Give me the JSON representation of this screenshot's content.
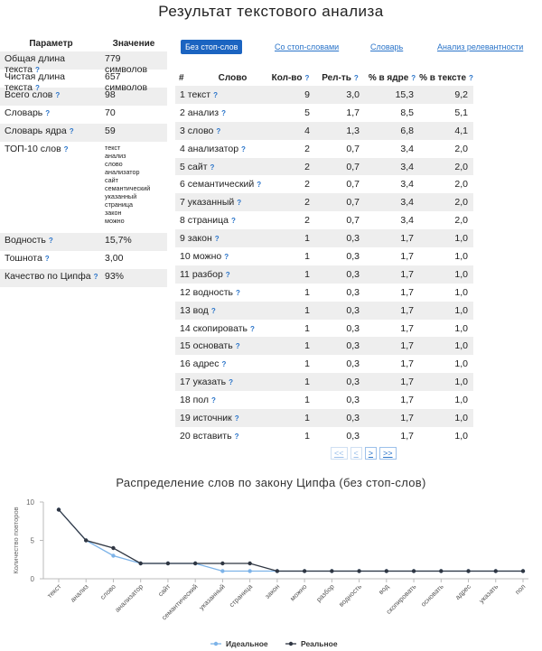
{
  "title": "Результат текстового анализа",
  "params": {
    "header": {
      "param": "Параметр",
      "value": "Значение"
    },
    "rows": [
      {
        "label": "Общая длина текста",
        "value": "779 символов"
      },
      {
        "label": "Чистая длина текста",
        "value": "657 символов"
      },
      {
        "label": "Всего слов",
        "value": "98"
      },
      {
        "label": "Словарь",
        "value": "70"
      },
      {
        "label": "Словарь ядра",
        "value": "59"
      }
    ],
    "top10": {
      "label": "ТОП-10 слов",
      "words": [
        "текст",
        "анализ",
        "слово",
        "анализатор",
        "сайт",
        "семантический",
        "указанный",
        "страница",
        "закон",
        "можно"
      ]
    },
    "rows2": [
      {
        "label": "Водность",
        "value": "15,7%"
      },
      {
        "label": "Тошнота",
        "value": "3,00"
      },
      {
        "label": "Качество по Ципфа",
        "value": "93%"
      }
    ]
  },
  "tabs": [
    "Без стоп-слов",
    "Со стоп-словами",
    "Словарь",
    "Анализ релевантности"
  ],
  "words_table": {
    "headers": {
      "num": "#",
      "word": "Слово",
      "count": "Кол-во",
      "rel": "Рел-ть",
      "core": "% в ядре",
      "text": "% в тексте"
    },
    "rows": [
      {
        "n": "1",
        "w": "текст",
        "c": "9",
        "r": "3,0",
        "k": "15,3",
        "t": "9,2"
      },
      {
        "n": "2",
        "w": "анализ",
        "c": "5",
        "r": "1,7",
        "k": "8,5",
        "t": "5,1"
      },
      {
        "n": "3",
        "w": "слово",
        "c": "4",
        "r": "1,3",
        "k": "6,8",
        "t": "4,1"
      },
      {
        "n": "4",
        "w": "анализатор",
        "c": "2",
        "r": "0,7",
        "k": "3,4",
        "t": "2,0"
      },
      {
        "n": "5",
        "w": "сайт",
        "c": "2",
        "r": "0,7",
        "k": "3,4",
        "t": "2,0"
      },
      {
        "n": "6",
        "w": "семантический",
        "c": "2",
        "r": "0,7",
        "k": "3,4",
        "t": "2,0"
      },
      {
        "n": "7",
        "w": "указанный",
        "c": "2",
        "r": "0,7",
        "k": "3,4",
        "t": "2,0"
      },
      {
        "n": "8",
        "w": "страница",
        "c": "2",
        "r": "0,7",
        "k": "3,4",
        "t": "2,0"
      },
      {
        "n": "9",
        "w": "закон",
        "c": "1",
        "r": "0,3",
        "k": "1,7",
        "t": "1,0"
      },
      {
        "n": "10",
        "w": "можно",
        "c": "1",
        "r": "0,3",
        "k": "1,7",
        "t": "1,0"
      },
      {
        "n": "11",
        "w": "разбор",
        "c": "1",
        "r": "0,3",
        "k": "1,7",
        "t": "1,0"
      },
      {
        "n": "12",
        "w": "водность",
        "c": "1",
        "r": "0,3",
        "k": "1,7",
        "t": "1,0"
      },
      {
        "n": "13",
        "w": "вод",
        "c": "1",
        "r": "0,3",
        "k": "1,7",
        "t": "1,0"
      },
      {
        "n": "14",
        "w": "скопировать",
        "c": "1",
        "r": "0,3",
        "k": "1,7",
        "t": "1,0"
      },
      {
        "n": "15",
        "w": "основать",
        "c": "1",
        "r": "0,3",
        "k": "1,7",
        "t": "1,0"
      },
      {
        "n": "16",
        "w": "адрес",
        "c": "1",
        "r": "0,3",
        "k": "1,7",
        "t": "1,0"
      },
      {
        "n": "17",
        "w": "указать",
        "c": "1",
        "r": "0,3",
        "k": "1,7",
        "t": "1,0"
      },
      {
        "n": "18",
        "w": "пол",
        "c": "1",
        "r": "0,3",
        "k": "1,7",
        "t": "1,0"
      },
      {
        "n": "19",
        "w": "источник",
        "c": "1",
        "r": "0,3",
        "k": "1,7",
        "t": "1,0"
      },
      {
        "n": "20",
        "w": "вставить",
        "c": "1",
        "r": "0,3",
        "k": "1,7",
        "t": "1,0"
      }
    ]
  },
  "pager": [
    "<<",
    "<",
    ">",
    ">>"
  ],
  "chart_data": {
    "type": "line",
    "title": "Распределение слов по закону Ципфа (без стоп-слов)",
    "ylabel": "Количество повторов",
    "xlabel": "",
    "ylim": [
      0,
      10
    ],
    "yticks": [
      0,
      5,
      10
    ],
    "grid": false,
    "legend_position": "bottom",
    "categories": [
      "текст",
      "анализ",
      "слово",
      "анализатор",
      "сайт",
      "семантический",
      "указанный",
      "страница",
      "закон",
      "можно",
      "разбор",
      "водность",
      "вод",
      "скопировать",
      "основать",
      "адрес",
      "указать",
      "пол"
    ],
    "series": [
      {
        "name": "Идеальное",
        "color": "#7db3e8",
        "values": [
          9,
          5,
          3,
          2,
          2,
          2,
          1,
          1,
          1,
          1,
          1,
          1,
          1,
          1,
          1,
          1,
          1,
          1
        ]
      },
      {
        "name": "Реальное",
        "color": "#2f3642",
        "values": [
          9,
          5,
          4,
          2,
          2,
          2,
          2,
          2,
          1,
          1,
          1,
          1,
          1,
          1,
          1,
          1,
          1,
          1
        ]
      }
    ]
  }
}
